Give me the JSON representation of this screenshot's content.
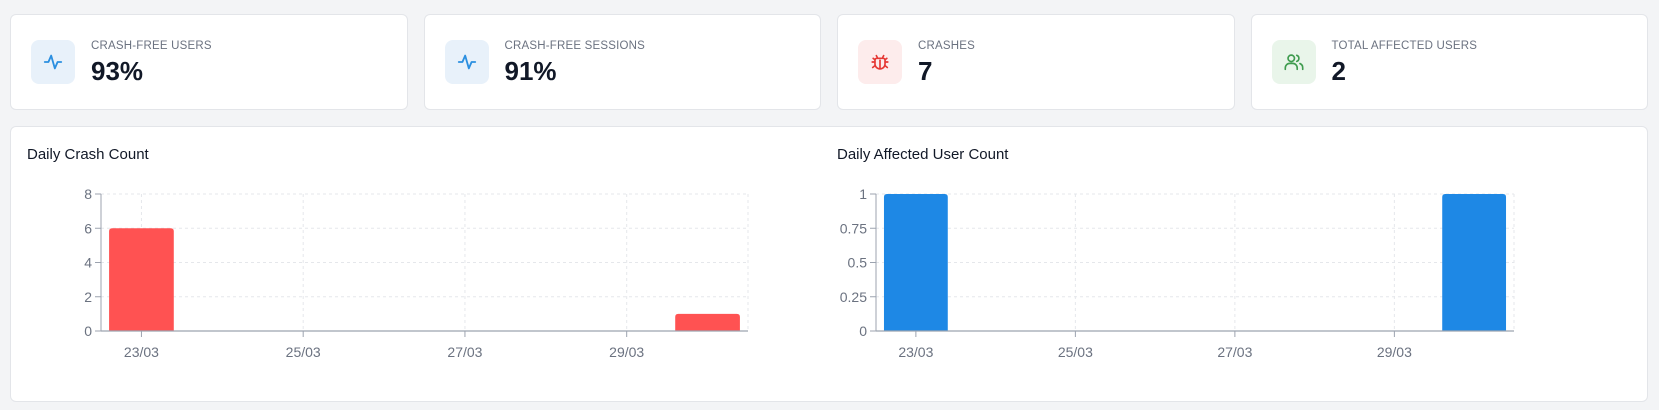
{
  "stats": [
    {
      "label": "CRASH-FREE USERS",
      "value": "93%",
      "icon": "pulse-icon",
      "icon_color": "#2b8fe0",
      "icon_bg": "#e8f1fa"
    },
    {
      "label": "CRASH-FREE SESSIONS",
      "value": "91%",
      "icon": "pulse-icon",
      "icon_color": "#2b8fe0",
      "icon_bg": "#e8f1fa"
    },
    {
      "label": "CRASHES",
      "value": "7",
      "icon": "bug-icon",
      "icon_color": "#e53935",
      "icon_bg": "#fdecec"
    },
    {
      "label": "TOTAL AFFECTED USERS",
      "value": "2",
      "icon": "users-icon",
      "icon_color": "#3f9c4f",
      "icon_bg": "#e9f5ea"
    }
  ],
  "chart_data": [
    {
      "type": "bar",
      "title": "Daily Crash Count",
      "x": [
        "23/03",
        "24/03",
        "25/03",
        "26/03",
        "27/03",
        "28/03",
        "29/03",
        "30/03"
      ],
      "values": [
        6,
        0,
        0,
        0,
        0,
        0,
        0,
        1
      ],
      "xticks": [
        "23/03",
        "25/03",
        "27/03",
        "29/03"
      ],
      "yticks": [
        "0",
        "2",
        "4",
        "6",
        "8"
      ],
      "ylim": [
        0,
        8
      ],
      "color": "#ff5252",
      "grid": true
    },
    {
      "type": "bar",
      "title": "Daily Affected User Count",
      "x": [
        "23/03",
        "24/03",
        "25/03",
        "26/03",
        "27/03",
        "28/03",
        "29/03",
        "30/03"
      ],
      "values": [
        1,
        0,
        0,
        0,
        0,
        0,
        0,
        1
      ],
      "xticks": [
        "23/03",
        "25/03",
        "27/03",
        "29/03"
      ],
      "yticks": [
        "0",
        "0.25",
        "0.5",
        "0.75",
        "1"
      ],
      "ylim": [
        0,
        1
      ],
      "color": "#1e88e5",
      "grid": true
    }
  ]
}
